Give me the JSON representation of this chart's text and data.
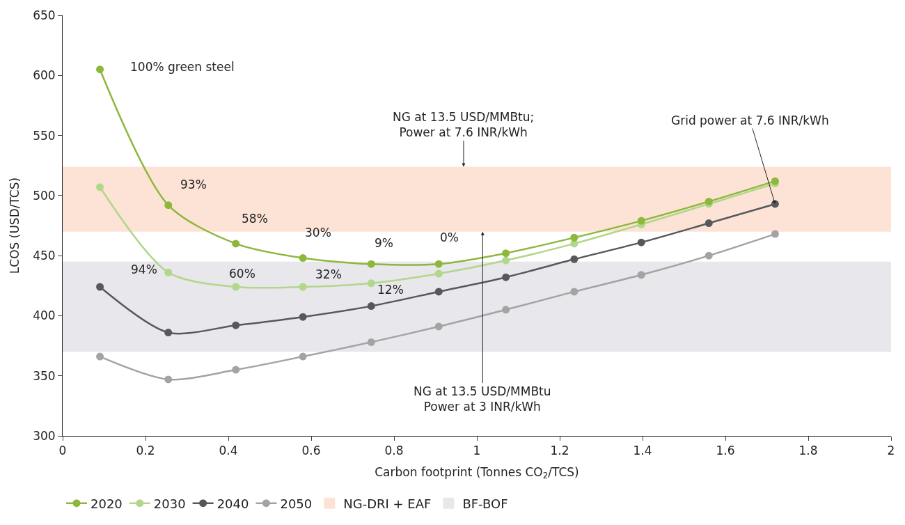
{
  "chart_data": {
    "type": "line",
    "xlabel": "Carbon footprint (Tonnes CO$_{2}$/TCS)",
    "ylabel": "LCOS (USD/TCS)",
    "x": [
      0.09,
      0.255,
      0.418,
      0.58,
      0.745,
      0.908,
      1.07,
      1.235,
      1.397,
      1.56,
      1.72
    ],
    "series": [
      {
        "name": "2020",
        "color": "#8cb83c",
        "values": [
          605,
          492,
          460,
          448,
          443,
          443,
          452,
          465,
          479,
          495,
          512
        ]
      },
      {
        "name": "2030",
        "color": "#b2d68a",
        "values": [
          507,
          436,
          424,
          424,
          427,
          435,
          446,
          460,
          476,
          493,
          510
        ]
      },
      {
        "name": "2040",
        "color": "#56595c",
        "values": [
          424,
          386,
          392,
          399,
          408,
          420,
          432,
          447,
          461,
          477,
          493
        ]
      },
      {
        "name": "2050",
        "color": "#a3a3a3",
        "values": [
          366,
          347,
          355,
          366,
          378,
          391,
          405,
          420,
          434,
          450,
          468
        ]
      }
    ],
    "bands": [
      {
        "axis": "y",
        "from": 470,
        "to": 524,
        "label": "NG-DRI + EAF",
        "color": "#fde3d6"
      },
      {
        "axis": "y",
        "from": 370,
        "to": 445,
        "label": "BF-BOF",
        "color": "#e7e7ec"
      }
    ],
    "annotations": [
      {
        "text": "100% green steel",
        "x": 0.09,
        "y": 605
      },
      {
        "text": "93%",
        "x": 0.255,
        "y": 492
      },
      {
        "text": "58%",
        "x": 0.418,
        "y": 460
      },
      {
        "text": "30%",
        "x": 0.58,
        "y": 448
      },
      {
        "text": "9%",
        "x": 0.745,
        "y": 443
      },
      {
        "text": "0%",
        "x": 0.908,
        "y": 443
      },
      {
        "text": "94%",
        "x": 0.255,
        "y": 436
      },
      {
        "text": "60%",
        "x": 0.418,
        "y": 424
      },
      {
        "text": "32%",
        "x": 0.58,
        "y": 424
      },
      {
        "text": "12%",
        "x": 0.745,
        "y": 427
      },
      {
        "text": "NG at 13.5 USD/MMBtu;\nPower at 7.6 INR/kWh",
        "x": 0.968,
        "y": 524
      },
      {
        "text": "NG at 13.5 USD/MMBtu\nPower at 3 INR/kWh",
        "x": 1.014,
        "y": 470
      },
      {
        "text": "Grid power at 7.6 INR/kWh",
        "x": 1.72,
        "y": 493
      }
    ],
    "xlim": [
      0,
      2
    ],
    "xticks": [
      0,
      0.2,
      0.4,
      0.6,
      0.8,
      1,
      1.2,
      1.4,
      1.6,
      1.8,
      2
    ],
    "ylim": [
      300,
      650
    ],
    "yticks": [
      300,
      350,
      400,
      450,
      500,
      550,
      600,
      650
    ],
    "grid": false,
    "legend": "bottom",
    "marker": "circle",
    "line_style": "solid"
  }
}
